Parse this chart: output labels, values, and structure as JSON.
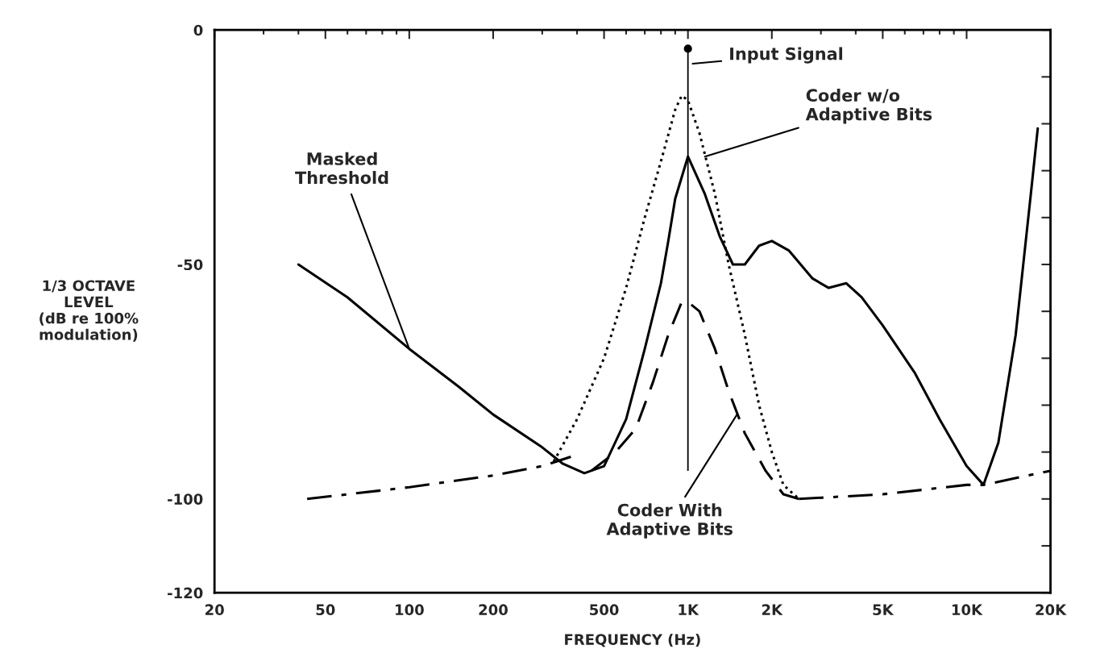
{
  "chart_data": {
    "type": "line",
    "xlabel": "FREQUENCY (Hz)",
    "ylabel": "1/3 OCTAVE\nLEVEL\n(dB re 100%\nmodulation)",
    "log": "x",
    "xlim": [
      20,
      20000
    ],
    "ylim": [
      -120,
      0
    ],
    "grid": false,
    "legend": false,
    "xticks": [
      20,
      50,
      100,
      200,
      500,
      {
        "value": 1000,
        "label": "1K"
      },
      {
        "value": 2000,
        "label": "2K"
      },
      {
        "value": 5000,
        "label": "5K"
      },
      {
        "value": 10000,
        "label": "10K"
      },
      {
        "value": 20000,
        "label": "20K"
      }
    ],
    "yticks": [
      0,
      {
        "value": -10,
        "label": null
      },
      {
        "value": -20,
        "label": null
      },
      {
        "value": -30,
        "label": null
      },
      {
        "value": -40,
        "label": null
      },
      -50,
      {
        "value": -60,
        "label": null
      },
      {
        "value": -70,
        "label": null
      },
      {
        "value": -80,
        "label": null
      },
      {
        "value": -90,
        "label": null
      },
      -100,
      {
        "value": -110,
        "label": null
      },
      -120
    ],
    "series": [
      {
        "color": "#000000",
        "line_style": "solid",
        "x": [
          40,
          60,
          100,
          150,
          200,
          300,
          356,
          425,
          500,
          600,
          700,
          800,
          850,
          900,
          1000,
          1150,
          1300,
          1450,
          1600,
          1800,
          2000,
          2300,
          2800,
          3200,
          3700,
          4200,
          5000,
          6500,
          8000,
          10000,
          11500,
          13000,
          15000,
          17000,
          18000
        ],
        "values": [
          -50,
          -57,
          -68,
          -76,
          -82,
          -89,
          -92.5,
          -94.5,
          -93,
          -83,
          -68,
          -54,
          -45,
          -36,
          -27,
          -35,
          -44,
          -50,
          -50,
          -46,
          -45,
          -47,
          -53,
          -55,
          -54,
          -57,
          -63,
          -73,
          -83,
          -93,
          -97,
          -88,
          -65,
          -35,
          -21
        ]
      },
      {
        "color": "#000000",
        "line_style": "dotted",
        "x": [
          330,
          400,
          500,
          600,
          700,
          800,
          900,
          950,
          1000,
          1100,
          1250,
          1400,
          1600,
          1800,
          2000,
          2200,
          2500
        ],
        "values": [
          -92,
          -83,
          -70,
          -55,
          -40,
          -28,
          -17,
          -14,
          -15,
          -22,
          -35,
          -50,
          -65,
          -80,
          -90,
          -97,
          -100
        ]
      },
      {
        "color": "#000000",
        "line_style": "dashed",
        "x": [
          450,
          550,
          650,
          750,
          850,
          950,
          1000,
          1100,
          1250,
          1400,
          1600,
          1900,
          2200,
          2500
        ],
        "values": [
          -94,
          -90,
          -85,
          -75,
          -65,
          -58,
          -58,
          -60,
          -68,
          -77,
          -86,
          -94,
          -99,
          -100
        ]
      },
      {
        "color": "#000000",
        "line_style": "dashdot",
        "x": [
          43,
          100,
          200,
          300,
          380,
          500,
          2500,
          5000,
          10000,
          11500,
          20000
        ],
        "values": [
          -100,
          -97.5,
          -95,
          -93,
          -91,
          null,
          -100,
          -99,
          -97,
          -97,
          -94
        ]
      },
      {
        "type": "bar",
        "color": "#000000",
        "x": [
          1000
        ],
        "base": [
          -94
        ],
        "values": [
          90
        ]
      },
      {
        "type": "scatter",
        "color": "#000000",
        "marker": "circle",
        "x": [
          1000
        ],
        "values": [
          -4
        ]
      }
    ],
    "annotations": [
      "Input Signal",
      {
        "text": "Coder w/o\nAdaptive Bits",
        "x": 1150,
        "y": -27
      },
      {
        "text": "Masked\nThreshold",
        "x": 100,
        "y": -68
      },
      {
        "text": "Coder With\nAdaptive Bits",
        "x": 1500,
        "y": -82
      }
    ]
  }
}
